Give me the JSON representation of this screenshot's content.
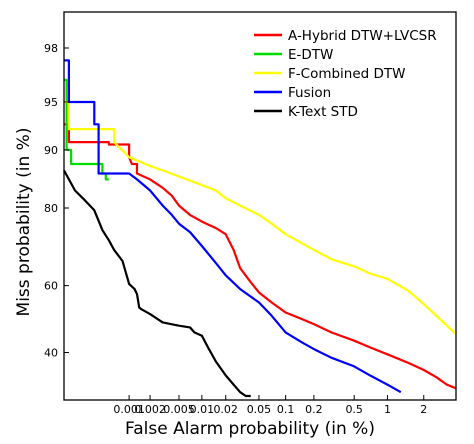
{
  "chart_data": {
    "type": "line",
    "title": "",
    "xlabel": "False Alarm probability (in %)",
    "ylabel": "Miss probability (in %)",
    "x_scale": "normal-deviate",
    "y_scale": "normal-deviate",
    "xlim": [
      0.0001,
      3.5
    ],
    "ylim": [
      27,
      99
    ],
    "x_ticks": [
      0.001,
      0.002,
      0.005,
      0.01,
      0.02,
      0.05,
      0.1,
      0.2,
      0.5,
      1,
      2
    ],
    "x_tick_labels": [
      "0.001",
      "0.002",
      "0.005",
      "0.01",
      "0.02",
      "0.05",
      "0.1",
      "0.2",
      "0.5",
      "1",
      "2"
    ],
    "y_ticks": [
      40,
      60,
      80,
      90,
      95,
      98
    ],
    "y_tick_labels": [
      "40",
      "60",
      "80",
      "90",
      "95",
      "98"
    ],
    "grid": false,
    "legend_position": "top-right",
    "series": [
      {
        "name": "A-Hybrid DTW+LVCSR",
        "color": "#ff0000",
        "x": [
          0.0001,
          0.00012,
          0.00012,
          0.0005,
          0.0005,
          0.001,
          0.001,
          0.0011,
          0.0013,
          0.0013,
          0.002,
          0.003,
          0.004,
          0.005,
          0.007,
          0.01,
          0.015,
          0.02,
          0.025,
          0.03,
          0.04,
          0.05,
          0.07,
          0.1,
          0.15,
          0.2,
          0.3,
          0.5,
          0.7,
          1,
          1.5,
          2,
          2.5,
          3,
          3.5
        ],
        "y": [
          93,
          93,
          91,
          91,
          90.7,
          90.7,
          89,
          88,
          88,
          86.5,
          85.5,
          84,
          82.5,
          80.5,
          78.5,
          77,
          75.5,
          74,
          70,
          65,
          61,
          58,
          55,
          52,
          50,
          48.5,
          46,
          43.5,
          41.5,
          39.5,
          37,
          35,
          33,
          31,
          30
        ]
      },
      {
        "name": "E-DTW",
        "color": "#00dd00",
        "x": [
          0.0001,
          0.00011,
          0.00011,
          0.00013,
          0.00013,
          0.0004,
          0.0004,
          0.00045,
          0.00045,
          0.0005
        ],
        "y": [
          96.5,
          96.5,
          90,
          90,
          88,
          88,
          86.5,
          86.5,
          85.5,
          85.5
        ]
      },
      {
        "name": "F-Combined DTW",
        "color": "#ffff00",
        "x": [
          0.0001,
          0.00012,
          0.00012,
          0.0006,
          0.0006,
          0.001,
          0.002,
          0.003,
          0.005,
          0.007,
          0.01,
          0.015,
          0.02,
          0.03,
          0.05,
          0.07,
          0.1,
          0.2,
          0.3,
          0.5,
          0.7,
          1,
          1.5,
          2,
          2.5,
          3,
          3.5
        ],
        "y": [
          95,
          95,
          92.5,
          92.5,
          91,
          89,
          87.7,
          87,
          86,
          85.3,
          84.5,
          83.5,
          82,
          80.5,
          78.5,
          76.5,
          74,
          70,
          67.5,
          65.5,
          63.5,
          62,
          58.5,
          54.5,
          51,
          48,
          45.5
        ]
      },
      {
        "name": "Fusion",
        "color": "#0000ff",
        "x": [
          0.0001,
          0.00012,
          0.00012,
          0.0003,
          0.0003,
          0.00035,
          0.00035,
          0.001,
          0.0013,
          0.002,
          0.003,
          0.004,
          0.005,
          0.007,
          0.01,
          0.015,
          0.02,
          0.03,
          0.05,
          0.07,
          0.1,
          0.15,
          0.2,
          0.3,
          0.5,
          0.7,
          1,
          1.3
        ],
        "y": [
          97.5,
          97.5,
          95,
          95,
          93,
          93,
          86.5,
          86.5,
          85.5,
          83.5,
          80.5,
          78.5,
          76.5,
          74.5,
          71,
          66.5,
          63,
          59,
          55,
          51,
          46,
          43,
          41,
          38.5,
          36,
          33.5,
          31,
          29
        ]
      },
      {
        "name": "K-Text STD",
        "color": "#000000",
        "x": [
          0.0001,
          0.00015,
          0.0002,
          0.0003,
          0.0004,
          0.0005,
          0.0006,
          0.0008,
          0.001,
          0.0012,
          0.0013,
          0.0014,
          0.0015,
          0.002,
          0.003,
          0.005,
          0.007,
          0.008,
          0.01,
          0.012,
          0.015,
          0.02,
          0.025,
          0.03,
          0.035,
          0.04
        ],
        "y": [
          87,
          83.5,
          82,
          79.5,
          75,
          72.5,
          70,
          67,
          60.5,
          59,
          57.5,
          53.5,
          53,
          51.5,
          49,
          48,
          47.5,
          46,
          45,
          41.5,
          37.5,
          33.5,
          31,
          29,
          28,
          28
        ]
      }
    ]
  }
}
